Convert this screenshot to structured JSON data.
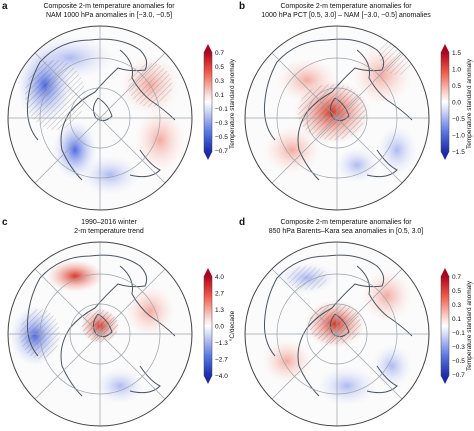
{
  "panels": [
    {
      "letter": "a",
      "title_line1": "Composite 2-m temperature anomalies for",
      "title_line2": "NAM 1000 hPa anomalies in [−3.0, −0.5]",
      "colorbar_label": "Temperature standard anomaly",
      "ticks": [
        "0.7",
        "0.5",
        "0.3",
        "0.1",
        "−0.1",
        "−0.3",
        "−0.5",
        "−0.7"
      ]
    },
    {
      "letter": "b",
      "title_line1": "Composite 2-m temperature anomalies for",
      "title_line2": "1000 hPa PCT [0.5, 3.0] – NAM [−3.0, −0.5] anomalies",
      "colorbar_label": "Temperature standard anomaly",
      "ticks": [
        "1.5",
        "1.0",
        "0.5",
        "0.0",
        "−0.5",
        "−1.0",
        "−1.5"
      ]
    },
    {
      "letter": "c",
      "title_line1": "1990–2016 winter",
      "title_line2": "2-m temperature trend",
      "colorbar_label": "°C/decade",
      "ticks": [
        "4.0",
        "2.7",
        "1.3",
        "0.0",
        "−1.3",
        "−2.7",
        "−4.0"
      ]
    },
    {
      "letter": "d",
      "title_line1": "Composite 2-m temperature anomalies for",
      "title_line2": "850 hPa Barents–Kara sea anomalies in [0.5, 3.0]",
      "colorbar_label": "Temperature standard anomaly",
      "ticks": [
        "0.7",
        "0.5",
        "0.3",
        "0.1",
        "−0.1",
        "−0.3",
        "−0.5",
        "−0.7"
      ]
    }
  ],
  "colors": {
    "warm": "#d7301f",
    "cool": "#2b4fd6",
    "coast": "#4a5560"
  }
}
